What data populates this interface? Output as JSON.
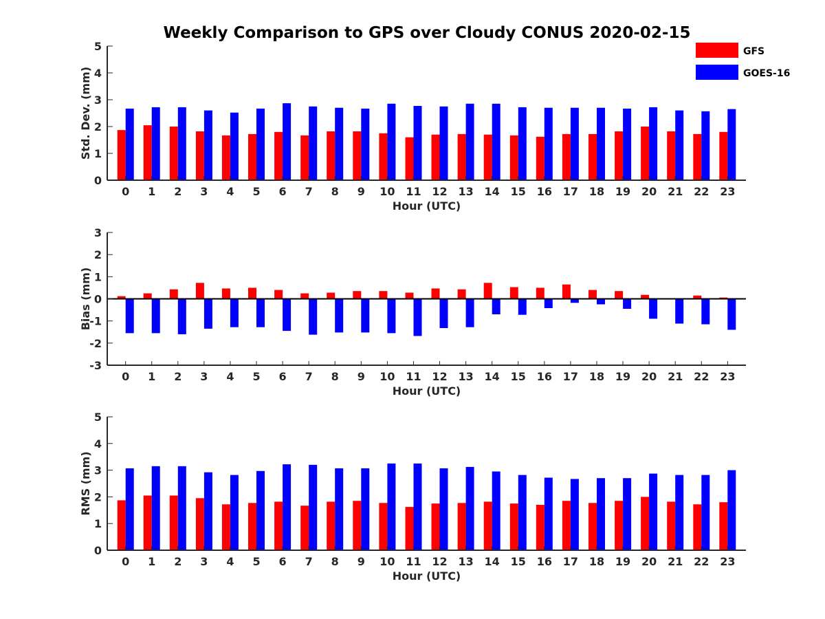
{
  "chart_data": {
    "title": "Weekly Comparison to GPS over Cloudy CONUS 2020-02-15",
    "legend": {
      "placement": "top-right",
      "entries": [
        {
          "name": "GFS",
          "color": "#ff0000"
        },
        {
          "name": "GOES-16",
          "color": "#0000ff"
        }
      ]
    },
    "panels": [
      {
        "type": "bar",
        "xlabel": "Hour (UTC)",
        "ylabel": "Std. Dev. (mm)",
        "ylim": [
          0,
          5
        ],
        "yticks": [
          0,
          1,
          2,
          3,
          4,
          5
        ],
        "categories": [
          "0",
          "1",
          "2",
          "3",
          "4",
          "5",
          "6",
          "7",
          "8",
          "9",
          "10",
          "11",
          "12",
          "13",
          "14",
          "15",
          "16",
          "17",
          "18",
          "19",
          "20",
          "21",
          "22",
          "23"
        ],
        "series": [
          {
            "name": "GFS",
            "color": "#ff0000",
            "values": [
              1.87,
              2.05,
              2.0,
              1.82,
              1.67,
              1.72,
              1.8,
              1.67,
              1.82,
              1.82,
              1.75,
              1.6,
              1.7,
              1.72,
              1.7,
              1.67,
              1.62,
              1.72,
              1.72,
              1.82,
              2.0,
              1.82,
              1.72,
              1.8
            ]
          },
          {
            "name": "GOES-16",
            "color": "#0000ff",
            "values": [
              2.67,
              2.72,
              2.72,
              2.6,
              2.52,
              2.67,
              2.87,
              2.75,
              2.7,
              2.67,
              2.85,
              2.77,
              2.75,
              2.85,
              2.85,
              2.72,
              2.7,
              2.7,
              2.7,
              2.67,
              2.72,
              2.6,
              2.57,
              2.65
            ]
          }
        ]
      },
      {
        "type": "bar",
        "xlabel": "Hour (UTC)",
        "ylabel": "Bias (mm)",
        "ylim": [
          -3,
          3
        ],
        "yticks": [
          -3,
          -2,
          -1,
          0,
          1,
          2,
          3
        ],
        "categories": [
          "0",
          "1",
          "2",
          "3",
          "4",
          "5",
          "6",
          "7",
          "8",
          "9",
          "10",
          "11",
          "12",
          "13",
          "14",
          "15",
          "16",
          "17",
          "18",
          "19",
          "20",
          "21",
          "22",
          "23"
        ],
        "series": [
          {
            "name": "GFS",
            "color": "#ff0000",
            "values": [
              0.12,
              0.25,
              0.43,
              0.72,
              0.47,
              0.5,
              0.4,
              0.25,
              0.28,
              0.35,
              0.35,
              0.28,
              0.47,
              0.43,
              0.72,
              0.53,
              0.5,
              0.65,
              0.4,
              0.35,
              0.18,
              0.0,
              0.15,
              0.06
            ]
          },
          {
            "name": "GOES-16",
            "color": "#0000ff",
            "values": [
              -1.55,
              -1.55,
              -1.6,
              -1.35,
              -1.28,
              -1.28,
              -1.45,
              -1.62,
              -1.52,
              -1.52,
              -1.55,
              -1.68,
              -1.32,
              -1.28,
              -0.7,
              -0.72,
              -0.42,
              -0.18,
              -0.25,
              -0.45,
              -0.9,
              -1.12,
              -1.15,
              -1.4
            ]
          }
        ]
      },
      {
        "type": "bar",
        "xlabel": "Hour (UTC)",
        "ylabel": "RMS (mm)",
        "ylim": [
          0,
          5
        ],
        "yticks": [
          0,
          1,
          2,
          3,
          4,
          5
        ],
        "categories": [
          "0",
          "1",
          "2",
          "3",
          "4",
          "5",
          "6",
          "7",
          "8",
          "9",
          "10",
          "11",
          "12",
          "13",
          "14",
          "15",
          "16",
          "17",
          "18",
          "19",
          "20",
          "21",
          "22",
          "23"
        ],
        "series": [
          {
            "name": "GFS",
            "color": "#ff0000",
            "values": [
              1.87,
              2.05,
              2.05,
              1.95,
              1.72,
              1.77,
              1.82,
              1.67,
              1.82,
              1.85,
              1.77,
              1.62,
              1.75,
              1.77,
              1.82,
              1.75,
              1.7,
              1.85,
              1.77,
              1.85,
              2.0,
              1.82,
              1.72,
              1.8
            ]
          },
          {
            "name": "GOES-16",
            "color": "#0000ff",
            "values": [
              3.07,
              3.15,
              3.15,
              2.92,
              2.82,
              2.97,
              3.22,
              3.2,
              3.07,
              3.07,
              3.25,
              3.25,
              3.07,
              3.12,
              2.95,
              2.82,
              2.72,
              2.67,
              2.7,
              2.7,
              2.87,
              2.82,
              2.82,
              3.0
            ]
          }
        ]
      }
    ]
  }
}
